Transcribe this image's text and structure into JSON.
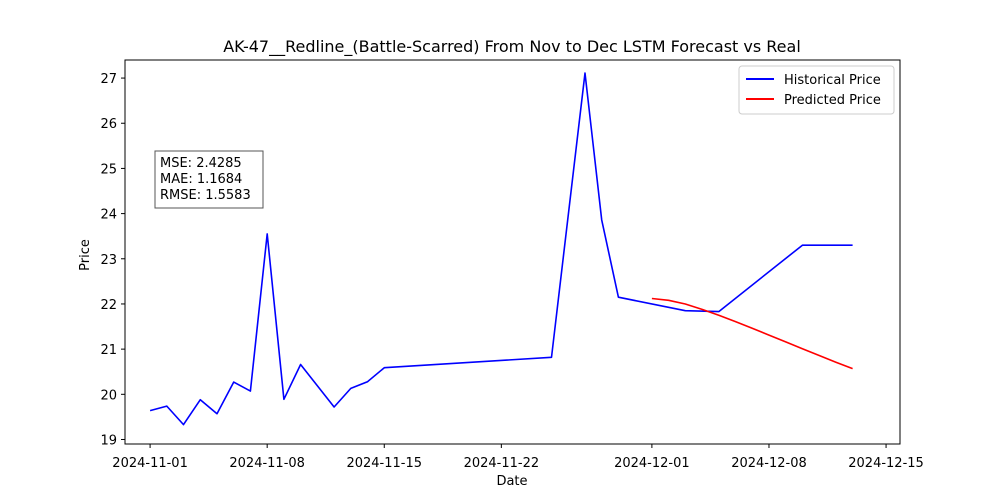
{
  "chart_data": {
    "type": "line",
    "title": "AK-47__Redline_(Battle-Scarred) From Nov to Dec LSTM Forecast vs Real",
    "xlabel": "Date",
    "ylabel": "Price",
    "x_ticks": [
      "2024-11-01",
      "2024-11-08",
      "2024-11-15",
      "2024-11-22",
      "2024-12-01",
      "2024-12-08",
      "2024-12-15"
    ],
    "y_ticks": [
      19,
      20,
      21,
      22,
      23,
      24,
      25,
      26,
      27
    ],
    "ylim": [
      18.9,
      27.4
    ],
    "grid": false,
    "legend_position": "top-right",
    "series": [
      {
        "name": "Historical Price",
        "color": "#0000ff",
        "points": [
          {
            "date": "2024-11-01",
            "value": 19.64
          },
          {
            "date": "2024-11-02",
            "value": 19.74
          },
          {
            "date": "2024-11-03",
            "value": 19.33
          },
          {
            "date": "2024-11-04",
            "value": 19.88
          },
          {
            "date": "2024-11-05",
            "value": 19.57
          },
          {
            "date": "2024-11-06",
            "value": 20.27
          },
          {
            "date": "2024-11-07",
            "value": 20.07
          },
          {
            "date": "2024-11-08",
            "value": 23.55
          },
          {
            "date": "2024-11-09",
            "value": 19.89
          },
          {
            "date": "2024-11-10",
            "value": 20.66
          },
          {
            "date": "2024-11-12",
            "value": 19.72
          },
          {
            "date": "2024-11-13",
            "value": 20.13
          },
          {
            "date": "2024-11-14",
            "value": 20.28
          },
          {
            "date": "2024-11-15",
            "value": 20.59
          },
          {
            "date": "2024-11-25",
            "value": 20.82
          },
          {
            "date": "2024-11-27",
            "value": 27.11
          },
          {
            "date": "2024-11-28",
            "value": 23.86
          },
          {
            "date": "2024-11-29",
            "value": 22.15
          },
          {
            "date": "2024-12-03",
            "value": 21.85
          },
          {
            "date": "2024-12-05",
            "value": 21.83
          },
          {
            "date": "2024-12-10",
            "value": 23.3
          },
          {
            "date": "2024-12-13",
            "value": 23.3
          }
        ]
      },
      {
        "name": "Predicted Price",
        "color": "#ff0000",
        "points": [
          {
            "date": "2024-12-01",
            "value": 22.12
          },
          {
            "date": "2024-12-02",
            "value": 22.08
          },
          {
            "date": "2024-12-03",
            "value": 22.0
          },
          {
            "date": "2024-12-04",
            "value": 21.88
          },
          {
            "date": "2024-12-05",
            "value": 21.75
          },
          {
            "date": "2024-12-06",
            "value": 21.61
          },
          {
            "date": "2024-12-07",
            "value": 21.46
          },
          {
            "date": "2024-12-08",
            "value": 21.31
          },
          {
            "date": "2024-12-09",
            "value": 21.16
          },
          {
            "date": "2024-12-10",
            "value": 21.01
          },
          {
            "date": "2024-12-11",
            "value": 20.86
          },
          {
            "date": "2024-12-12",
            "value": 20.71
          },
          {
            "date": "2024-12-13",
            "value": 20.57
          }
        ]
      }
    ],
    "annotation_lines": [
      "MSE: 2.4285",
      "MAE: 1.1684",
      "RMSE: 1.5583"
    ]
  }
}
